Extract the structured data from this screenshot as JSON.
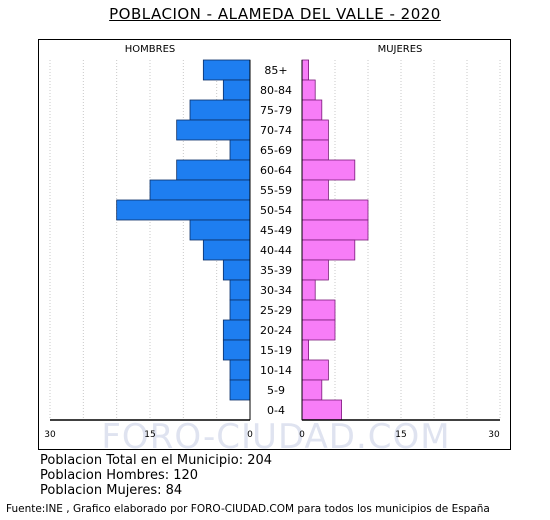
{
  "title": "POBLACION - ALAMEDA DEL VALLE - 2020",
  "watermark": "FORO-CIUDAD.COM",
  "chart_data": {
    "type": "bar",
    "orientation": "horizontal-pyramid",
    "categories": [
      "85+",
      "80-84",
      "75-79",
      "70-74",
      "65-69",
      "60-64",
      "55-59",
      "50-54",
      "45-49",
      "40-44",
      "35-39",
      "30-34",
      "25-29",
      "20-24",
      "15-19",
      "10-14",
      "5-9",
      "0-4"
    ],
    "series": [
      {
        "name": "HOMBRES",
        "color": "#1e7ef0",
        "values": [
          7,
          4,
          9,
          11,
          3,
          11,
          15,
          20,
          9,
          7,
          4,
          3,
          3,
          4,
          4,
          3,
          3,
          0
        ]
      },
      {
        "name": "MUJERES",
        "color": "#f77df7",
        "values": [
          1,
          2,
          3,
          4,
          4,
          8,
          4,
          10,
          10,
          8,
          4,
          2,
          5,
          5,
          1,
          4,
          3,
          6
        ]
      }
    ],
    "xlim": [
      0,
      30
    ],
    "x_ticks_left": [
      "30",
      "15",
      "0"
    ],
    "x_ticks_right": [
      "0",
      "15",
      "30"
    ]
  },
  "stats": {
    "total": "Poblacion Total en el Municipio: 204",
    "hombres": "Poblacion Hombres: 120",
    "mujeres": "Poblacion Mujeres: 84"
  },
  "footer": "Fuente:INE , Grafico elaborado por FORO-CIUDAD.COM para todos los municipios de España"
}
